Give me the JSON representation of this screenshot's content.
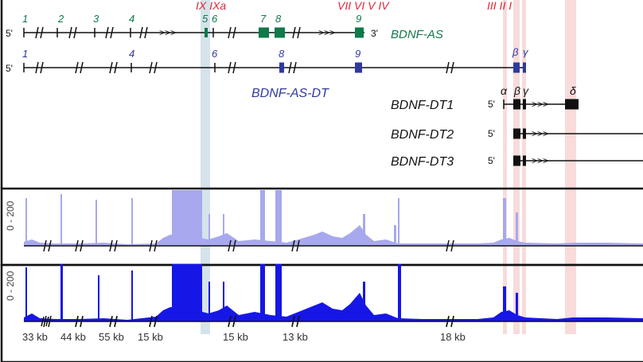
{
  "colors": {
    "antisense_green": "#0f7a4a",
    "dt_blue": "#2f3a9e",
    "red_label": "#e0263a",
    "track1_fill": "#a7a8ee",
    "track2_fill": "#1616e6",
    "highlight_blue": "#c7dae3",
    "highlight_pink": "#f6d2d2",
    "black": "#111111"
  },
  "red_exon_labels": {
    "group1": "IX IXa",
    "group2": "VII VI V IV",
    "group3": "III II I"
  },
  "bdnf_as": {
    "name": "BDNF-AS",
    "five_prime": "5'",
    "three_prime": "3'",
    "exon_numbers": [
      "1",
      "2",
      "3",
      "4",
      "5",
      "6",
      "7",
      "8",
      "9"
    ]
  },
  "bdnf_as_dt": {
    "name": "BDNF-AS-DT",
    "five_prime": "5'",
    "exon_numbers": [
      "1",
      "4",
      "6",
      "8",
      "9"
    ],
    "greek": [
      "β",
      "γ"
    ]
  },
  "bdnf_dt": [
    {
      "name": "BDNF-DT1",
      "five_prime": "5'",
      "greek": [
        "α",
        "β",
        "γ",
        "δ"
      ]
    },
    {
      "name": "BDNF-DT2",
      "five_prime": "5'"
    },
    {
      "name": "BDNF-DT3",
      "five_prime": "5'"
    }
  ],
  "tracks": [
    {
      "scale_label": "0 - 200"
    },
    {
      "scale_label": "0 - 200"
    }
  ],
  "distance_labels": [
    "33 kb",
    "44 kb",
    "55 kb",
    "15 kb",
    "15 kb",
    "13 kb",
    "18 kb"
  ],
  "arrows": ">>>"
}
